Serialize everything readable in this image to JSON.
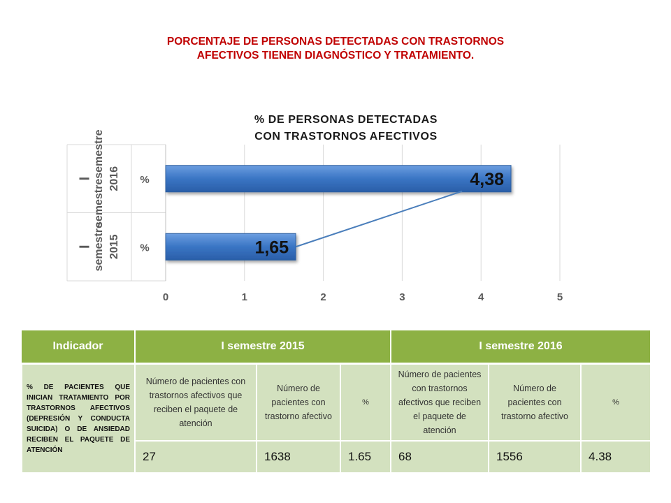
{
  "page_title": {
    "line1": "PORCENTAJE DE PERSONAS  DETECTADAS CON TRASTORNOS",
    "line2": "AFECTIVOS TIENEN DIAGNÓSTICO Y TRATAMIENTO."
  },
  "chart_data": {
    "type": "bar",
    "orientation": "horizontal",
    "title_line1": "% DE PERSONAS DETECTADAS",
    "title_line2": "CON TRASTORNOS AFECTIVOS",
    "categories": [
      {
        "group": "I semestresemestre 2016",
        "group_line1": "I",
        "group_line2": "semestresemestre",
        "group_line3": "2016",
        "sub": "%"
      },
      {
        "group": "I semestre 2015",
        "group_line1": "I",
        "group_line2": "semestre",
        "group_line3": "2015",
        "sub": "%"
      }
    ],
    "values": [
      4.38,
      1.65
    ],
    "data_labels": [
      "4,38",
      "1,65"
    ],
    "xlim": [
      0,
      5
    ],
    "xticks": [
      "0",
      "1",
      "2",
      "3",
      "4",
      "5"
    ],
    "grid": true,
    "bar_color": "#3a75c4",
    "trend_line_color": "#4a7ebb"
  },
  "table": {
    "header": {
      "indicator": "Indicador",
      "sem2015": "I semestre 2015",
      "sem2016": "I semestre 2016"
    },
    "indicator_text": "% DE PACIENTES QUE INICIAN TRATAMIENTO POR TRASTORNOS AFECTIVOS (DEPRESIÓN Y CONDUCTA SUICIDA) O DE ANSIEDAD RECIBEN EL PAQUETE DE ATENCIÓN",
    "sub_2015": {
      "col1": "Número de pacientes con trastornos afectivos  que reciben el paquete de atención",
      "col2": "Número de pacientes  con trastorno afectivo",
      "col3": "%"
    },
    "sub_2016": {
      "col1": "Número de pacientes con trastornos afectivos  que reciben el paquete de atención",
      "col2": "Número de pacientes  con trastorno afectivo",
      "col3": "%"
    },
    "values": [
      "27",
      "1638",
      "1.65",
      "68",
      "1556",
      "4.38"
    ],
    "header_color": "#8db144"
  }
}
